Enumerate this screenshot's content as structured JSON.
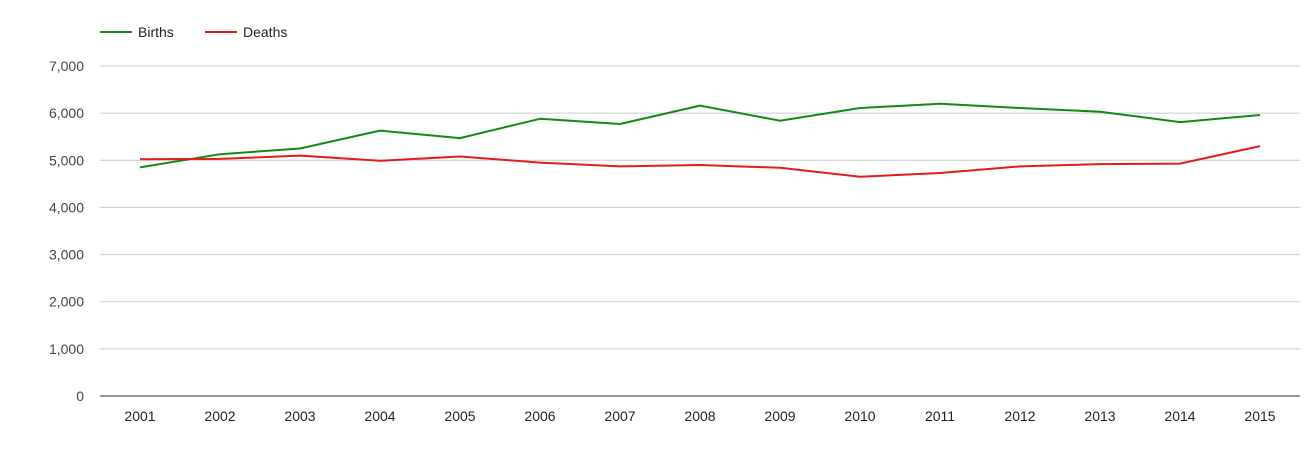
{
  "chart_data": {
    "type": "line",
    "title": "",
    "xlabel": "",
    "ylabel": "",
    "categories": [
      "2001",
      "2002",
      "2003",
      "2004",
      "2005",
      "2006",
      "2007",
      "2008",
      "2009",
      "2010",
      "2011",
      "2012",
      "2013",
      "2014",
      "2015"
    ],
    "ylim": [
      0,
      7000
    ],
    "yticks": [
      0,
      1000,
      2000,
      3000,
      4000,
      5000,
      6000,
      7000
    ],
    "ytick_labels": [
      "0",
      "1,000",
      "2,000",
      "3,000",
      "4,000",
      "5,000",
      "6,000",
      "7,000"
    ],
    "grid": true,
    "legend_position": "top-left",
    "series": [
      {
        "name": "Births",
        "color": "#138a13",
        "values": [
          4850,
          5130,
          5250,
          5630,
          5470,
          5880,
          5770,
          6160,
          5840,
          6110,
          6200,
          6110,
          6030,
          5810,
          5960
        ]
      },
      {
        "name": "Deaths",
        "color": "#e31b1b",
        "values": [
          5020,
          5030,
          5100,
          4990,
          5080,
          4950,
          4870,
          4900,
          4840,
          4650,
          4730,
          4870,
          4920,
          4930,
          5300
        ]
      }
    ]
  }
}
